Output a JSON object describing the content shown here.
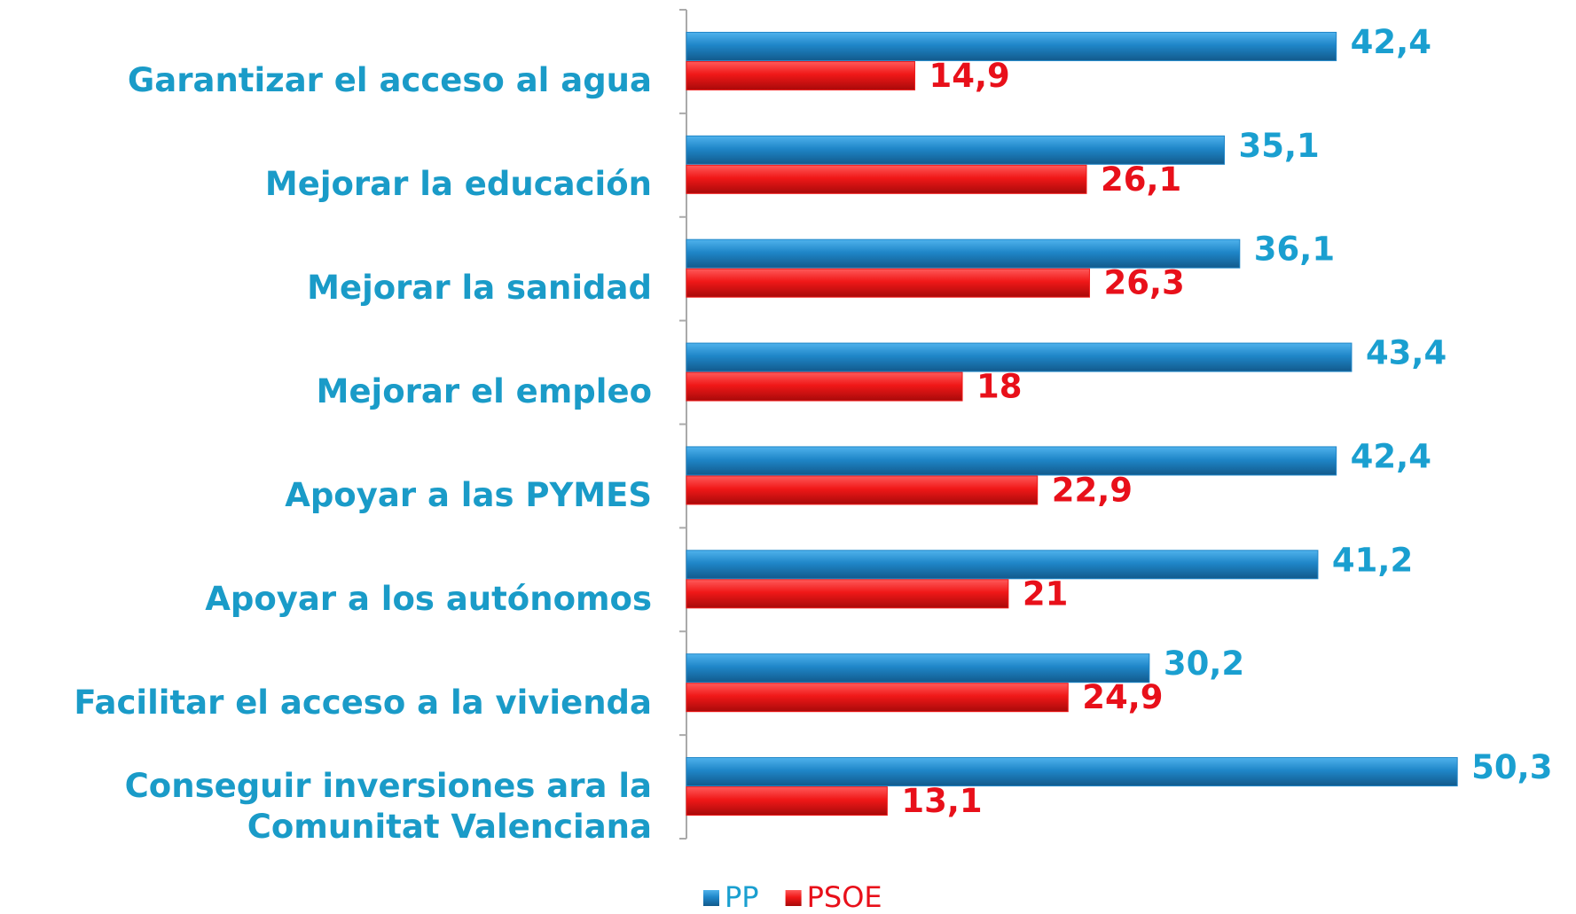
{
  "chart_data": {
    "type": "bar",
    "orientation": "horizontal",
    "categories": [
      "Garantizar el acceso al agua",
      "Mejorar la educación",
      "Mejorar la sanidad",
      "Mejorar el empleo",
      "Apoyar a las PYMES",
      "Apoyar a los autónomos",
      "Facilitar el acceso a la vivienda",
      "Conseguir inversiones ara la\nComunitat Valenciana"
    ],
    "series": [
      {
        "name": "PP",
        "color": "#1f86c8",
        "label_color": "#1a9fd0",
        "values": [
          42.4,
          35.1,
          36.1,
          43.4,
          42.4,
          41.2,
          30.2,
          50.3
        ],
        "value_labels": [
          "42,4",
          "35,1",
          "36,1",
          "43,4",
          "42,4",
          "41,2",
          "30,2",
          "50,3"
        ]
      },
      {
        "name": "PSOE",
        "color": "#f01818",
        "label_color": "#e8101a",
        "values": [
          14.9,
          26.1,
          26.3,
          18,
          22.9,
          21,
          24.9,
          13.1
        ],
        "value_labels": [
          "14,9",
          "26,1",
          "26,3",
          "18",
          "22,9",
          "21",
          "24,9",
          "13,1"
        ]
      }
    ],
    "legend": "bottom"
  }
}
